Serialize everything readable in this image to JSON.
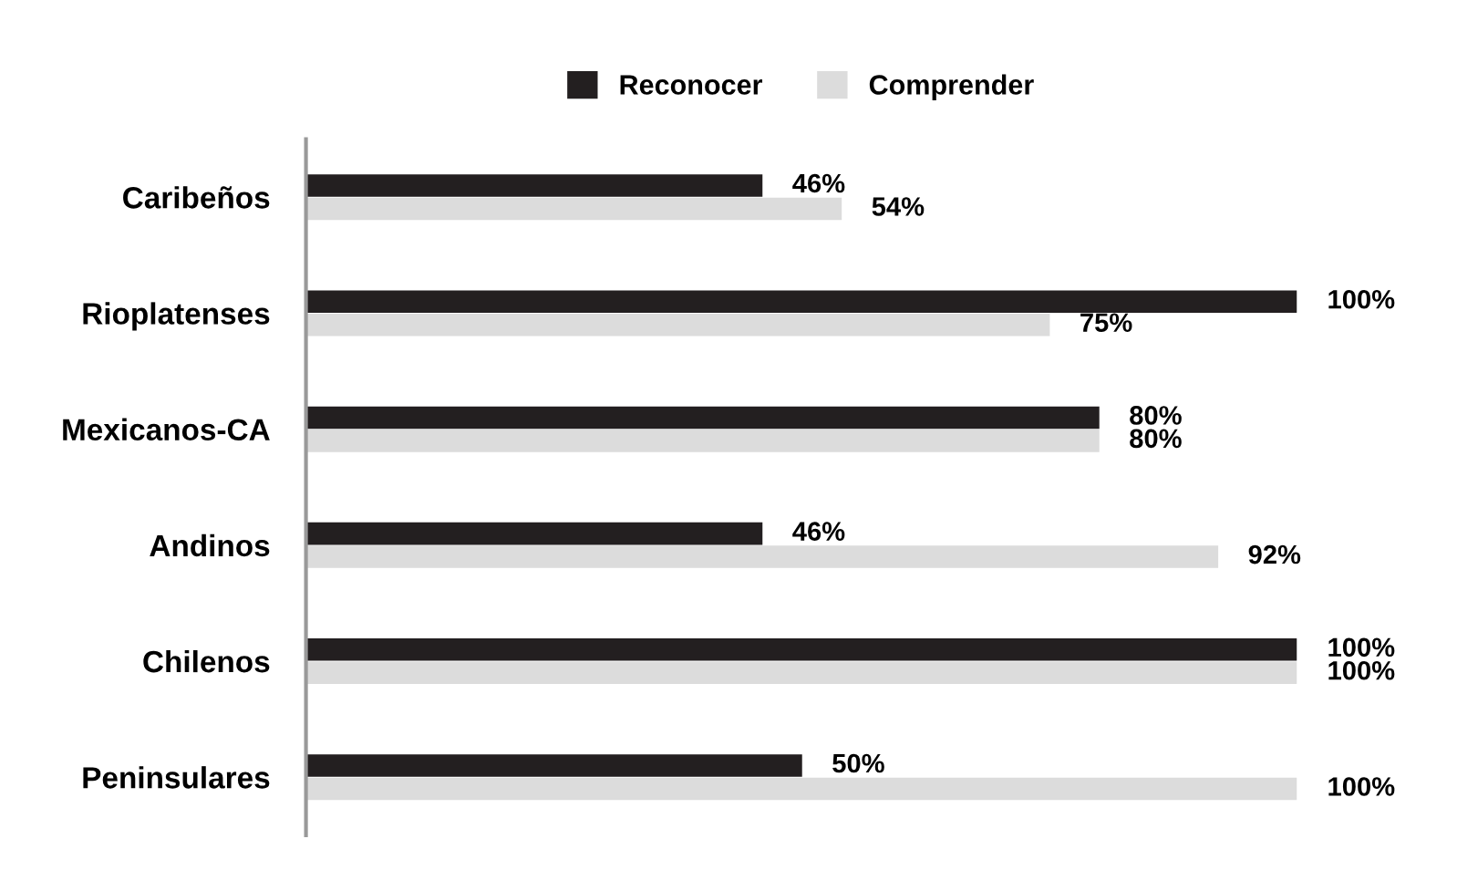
{
  "chart_data": {
    "type": "bar",
    "orientation": "horizontal",
    "legend": "top",
    "categories": [
      "Caribeños",
      "Rioplatenses",
      "Mexicanos-CA",
      "Andinos",
      "Chilenos",
      "Peninsulares"
    ],
    "series": [
      {
        "name": "Reconocer",
        "color": "#231f20",
        "values": [
          46,
          100,
          80,
          46,
          100,
          50
        ],
        "value_labels": [
          "46%",
          "100%",
          "80%",
          "46%",
          "100%",
          "50%"
        ]
      },
      {
        "name": "Comprender",
        "color": "#dcdcdc",
        "values": [
          54,
          75,
          80,
          92,
          100,
          100
        ],
        "value_labels": [
          "54%",
          "75%",
          "80%",
          "92%",
          "100%",
          "100%"
        ]
      }
    ]
  }
}
